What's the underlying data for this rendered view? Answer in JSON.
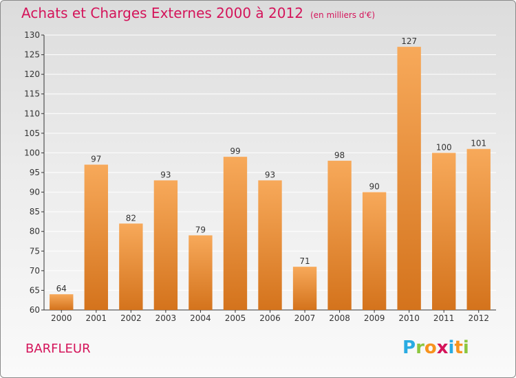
{
  "title": {
    "main": "Achats et Charges Externes 2000 à 2012",
    "sub": "(en milliers d'€)"
  },
  "commune": "BARFLEUR",
  "logo": {
    "letters": [
      "P",
      "r",
      "o",
      "x",
      "i",
      "t",
      "i"
    ],
    "colors": [
      "#29abe2",
      "#8cc63f",
      "#f7931e",
      "#d4145a",
      "#29abe2",
      "#f7931e",
      "#8cc63f"
    ]
  },
  "colors": {
    "bar_light": "#f7a95a",
    "bar_dark": "#d4731c",
    "title": "#d4145a",
    "grid": "#ffffff",
    "axis": "#333333"
  },
  "chart_data": {
    "type": "bar",
    "title": "Achats et Charges Externes 2000 à 2012",
    "subtitle": "(en milliers d'€)",
    "categories": [
      "2000",
      "2001",
      "2002",
      "2003",
      "2004",
      "2005",
      "2006",
      "2007",
      "2008",
      "2009",
      "2010",
      "2011",
      "2012"
    ],
    "values": [
      64,
      97,
      82,
      93,
      79,
      99,
      93,
      71,
      98,
      90,
      127,
      100,
      101
    ],
    "ylim": [
      60,
      130
    ],
    "yticks": [
      60,
      65,
      70,
      75,
      80,
      85,
      90,
      95,
      100,
      105,
      110,
      115,
      120,
      125,
      130
    ],
    "grid": true,
    "xlabel": "",
    "ylabel": ""
  }
}
